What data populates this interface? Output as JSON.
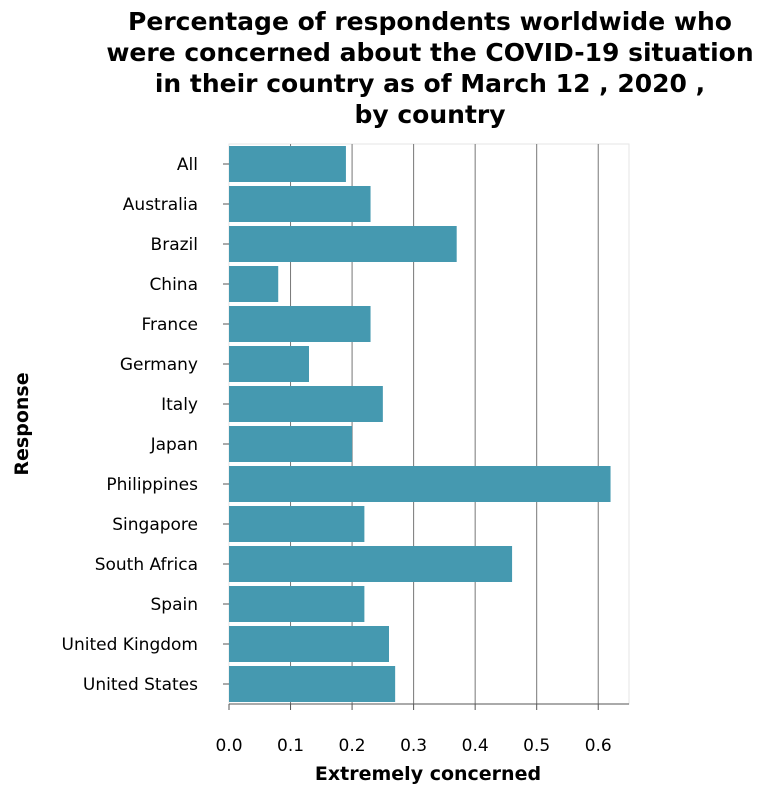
{
  "chart_data": {
    "type": "bar",
    "orientation": "horizontal",
    "title_lines": [
      "Percentage of respondents worldwide who",
      "were concerned about the COVID-19 situation",
      "in their country as of March 12 , 2020 ,",
      "by country"
    ],
    "xlabel": "Extremely concerned",
    "ylabel": "Response",
    "xlim": [
      0,
      0.65
    ],
    "xticks": [
      "0.0",
      "0.1",
      "0.2",
      "0.3",
      "0.4",
      "0.5",
      "0.6"
    ],
    "grid": "vertical",
    "bar_color": "#4599b0",
    "categories": [
      "All",
      "Australia",
      "Brazil",
      "China",
      "France",
      "Germany",
      "Italy",
      "Japan",
      "Philippines",
      "Singapore",
      "South Africa",
      "Spain",
      "United Kingdom",
      "United States"
    ],
    "values": [
      0.19,
      0.23,
      0.37,
      0.08,
      0.23,
      0.13,
      0.25,
      0.2,
      0.62,
      0.22,
      0.46,
      0.22,
      0.26,
      0.27
    ]
  }
}
